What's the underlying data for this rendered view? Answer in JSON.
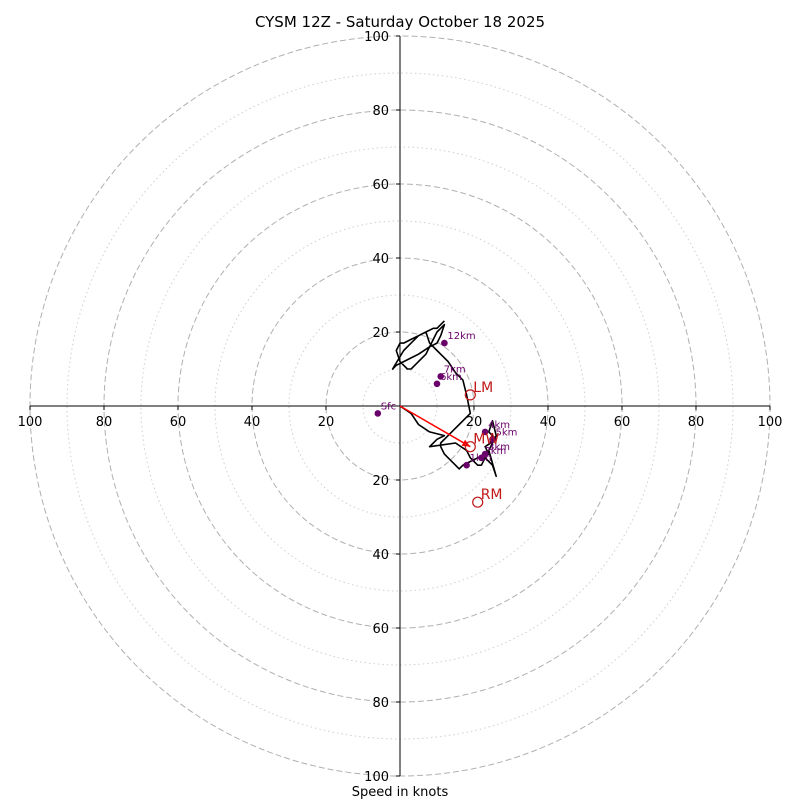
{
  "chart_data": {
    "type": "line",
    "title": "CYSM 12Z - Saturday October 18 2025",
    "xlabel": "Speed in knots",
    "units": "knots",
    "xlim": [
      -100,
      100
    ],
    "ylim": [
      -100,
      100
    ],
    "ring_major": [
      20,
      40,
      60,
      80,
      100
    ],
    "ring_minor": [
      10,
      30,
      50,
      70,
      90
    ],
    "tick_labels": {
      "x_negative": [
        "100",
        "80",
        "60",
        "40",
        "20"
      ],
      "x_positive": [
        "20",
        "40",
        "60",
        "80",
        "100"
      ],
      "y_positive": [
        "20",
        "40",
        "60",
        "80",
        "100"
      ],
      "y_negative": [
        "20",
        "40",
        "60",
        "80",
        "100"
      ]
    },
    "hodograph": {
      "u": [
        0,
        3,
        5,
        8,
        12,
        10,
        8,
        15,
        18,
        19,
        21,
        22,
        23,
        24,
        25,
        26,
        24,
        26,
        25,
        24,
        26,
        23,
        24,
        21,
        19,
        17,
        16,
        15,
        13,
        12,
        11,
        11,
        13,
        15,
        16,
        17,
        18,
        19,
        18,
        17,
        15,
        13,
        11,
        10,
        9,
        8,
        7,
        5,
        3,
        1,
        0,
        -1,
        0,
        1,
        2,
        3,
        4,
        5,
        7,
        8,
        9,
        10,
        11,
        12,
        11,
        10,
        8,
        5,
        3,
        1,
        -1,
        -2,
        1,
        3,
        5,
        7,
        9,
        10,
        11,
        12
      ],
      "v": [
        0,
        -2,
        -5,
        -7,
        -8,
        -9,
        -11,
        -10,
        -12,
        -14,
        -16,
        -16,
        -14,
        -15,
        -16,
        -19,
        -12,
        -8,
        -4,
        -7,
        -9,
        -11,
        -13,
        -14,
        -15,
        -16,
        -17,
        -16,
        -14,
        -13,
        -11,
        -10,
        -8,
        -6,
        -5,
        -4,
        -3,
        -2,
        3,
        7,
        9,
        12,
        14,
        15,
        16,
        17,
        20,
        19,
        18,
        17,
        17,
        15,
        12,
        11,
        10,
        10,
        11,
        12,
        14,
        16,
        18,
        20,
        21,
        22,
        19,
        17,
        16,
        14,
        13,
        12,
        11,
        10,
        15,
        17,
        19,
        20,
        21,
        21,
        22,
        23
      ]
    },
    "height_markers": [
      {
        "label": "Sfc",
        "u": -6,
        "v": -2
      },
      {
        "label": "1km",
        "u": 18,
        "v": -16
      },
      {
        "label": "2km",
        "u": 22,
        "v": -14
      },
      {
        "label": "3km",
        "u": 23,
        "v": -13
      },
      {
        "label": "4km",
        "u": 23,
        "v": -7
      },
      {
        "label": "5km",
        "u": 25,
        "v": -9
      },
      {
        "label": "6km",
        "u": 10,
        "v": 6
      },
      {
        "label": "7km",
        "u": 11,
        "v": 8
      },
      {
        "label": "12km",
        "u": 12,
        "v": 17
      }
    ],
    "storm_motion": [
      {
        "label": "LM",
        "u": 19,
        "v": 3
      },
      {
        "label": "MW",
        "u": 19,
        "v": -11
      },
      {
        "label": "RM",
        "u": 21,
        "v": -26
      }
    ],
    "storm_vector": {
      "u": 19,
      "v": -11
    },
    "colors": {
      "hodograph": "#000000",
      "markers": "#6a006a",
      "storm_motion": "#c01818",
      "storm_vector": "#ff0000",
      "grid": "#b0b0b0",
      "axes": "#000000"
    }
  }
}
